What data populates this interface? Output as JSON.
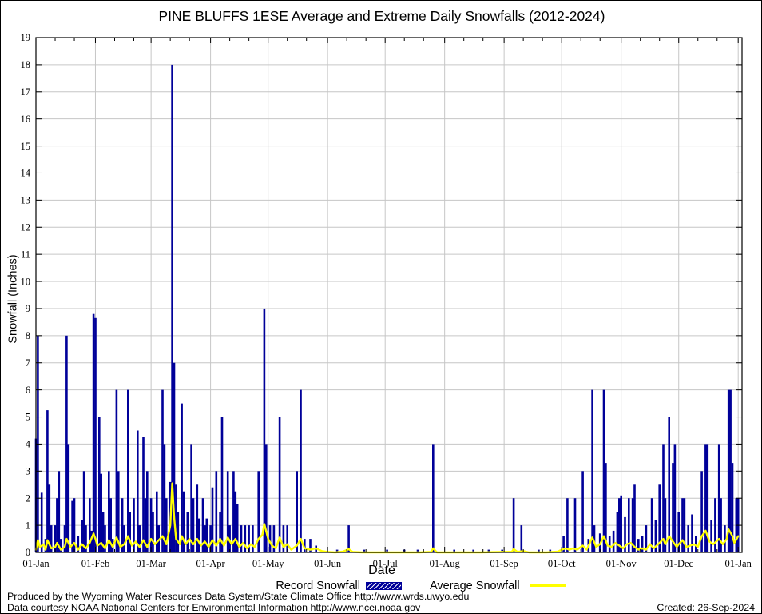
{
  "title": "PINE BLUFFS 1ESE Average and Extreme Daily Snowfalls (2012-2024)",
  "y_axis_label": "Snowfall (Inches)",
  "x_axis_label": "Date",
  "legend": {
    "record_label": "Record Snowfall",
    "average_label": "Average Snowfall"
  },
  "footer": {
    "line1": "Produced by the Wyoming Water Resources Data System/State Climate Office http://www.wrds.uwyo.edu",
    "line2": "Data courtesy NOAA National Centers for Environmental Information http://www.ncei.noaa.gov",
    "created": "Created: 26-Sep-2024"
  },
  "colors": {
    "record_bar": "#000099",
    "average_line": "#ffff00",
    "grid": "#c6c6c6",
    "axis": "#000000",
    "background": "#ffffff"
  },
  "chart_data": {
    "type": "bar",
    "title": "PINE BLUFFS 1ESE Average and Extreme Daily Snowfalls (2012-2024)",
    "xlabel": "Date",
    "ylabel": "Snowfall (Inches)",
    "ylim": [
      0,
      19
    ],
    "y_tick_step": 1,
    "grid": true,
    "legend_position": "below",
    "x_range_days": [
      0,
      368
    ],
    "x_tick_labels": [
      "01-Jan",
      "01-Feb",
      "01-Mar",
      "01-Apr",
      "01-May",
      "01-Jun",
      "01-Jul",
      "01-Aug",
      "01-Sep",
      "01-Oct",
      "01-Nov",
      "01-Dec",
      "01-Jan"
    ],
    "month_start_days": [
      0,
      31,
      60,
      91,
      121,
      152,
      182,
      213,
      244,
      274,
      305,
      335,
      366
    ],
    "series": [
      {
        "name": "Record Snowfall",
        "render": "bar",
        "color": "#000099",
        "units": "inches",
        "points": [
          [
            0,
            4.2
          ],
          [
            1,
            8
          ],
          [
            3,
            2.2
          ],
          [
            5,
            0.5
          ],
          [
            6,
            5.25
          ],
          [
            7,
            2.5
          ],
          [
            8,
            1
          ],
          [
            10,
            1
          ],
          [
            11,
            2
          ],
          [
            12,
            3
          ],
          [
            13,
            0.5
          ],
          [
            15,
            1
          ],
          [
            16,
            8
          ],
          [
            17,
            4
          ],
          [
            19,
            1.9
          ],
          [
            20,
            2
          ],
          [
            22,
            0.6
          ],
          [
            24,
            1.2
          ],
          [
            25,
            3
          ],
          [
            26,
            1
          ],
          [
            28,
            2
          ],
          [
            29,
            0.8
          ],
          [
            30,
            8.8
          ],
          [
            31,
            8.65
          ],
          [
            33,
            5
          ],
          [
            34,
            2.9
          ],
          [
            35,
            1.5
          ],
          [
            36,
            1
          ],
          [
            38,
            3
          ],
          [
            39,
            2
          ],
          [
            40,
            0.5
          ],
          [
            42,
            6
          ],
          [
            43,
            3
          ],
          [
            45,
            2
          ],
          [
            46,
            1
          ],
          [
            48,
            6
          ],
          [
            49,
            1.5
          ],
          [
            51,
            2
          ],
          [
            53,
            4.5
          ],
          [
            54,
            1
          ],
          [
            56,
            4.25
          ],
          [
            57,
            2
          ],
          [
            58,
            3
          ],
          [
            60,
            2
          ],
          [
            61,
            1.5
          ],
          [
            63,
            2.25
          ],
          [
            64,
            1
          ],
          [
            66,
            6
          ],
          [
            67,
            4
          ],
          [
            68,
            2
          ],
          [
            70,
            2.6
          ],
          [
            71,
            18
          ],
          [
            72,
            7
          ],
          [
            73,
            2.5
          ],
          [
            74,
            1.5
          ],
          [
            76,
            5.5
          ],
          [
            77,
            2.25
          ],
          [
            79,
            1.5
          ],
          [
            81,
            4
          ],
          [
            82,
            2
          ],
          [
            84,
            2.5
          ],
          [
            85,
            1.25
          ],
          [
            87,
            2
          ],
          [
            88,
            1
          ],
          [
            89,
            1.25
          ],
          [
            91,
            1
          ],
          [
            92,
            2.4
          ],
          [
            94,
            3
          ],
          [
            96,
            1.5
          ],
          [
            97,
            5
          ],
          [
            100,
            3
          ],
          [
            101,
            1
          ],
          [
            103,
            3
          ],
          [
            104,
            2.25
          ],
          [
            105,
            1.8
          ],
          [
            107,
            1
          ],
          [
            109,
            1
          ],
          [
            111,
            1
          ],
          [
            113,
            1
          ],
          [
            116,
            3
          ],
          [
            119,
            9
          ],
          [
            120,
            4
          ],
          [
            122,
            1
          ],
          [
            124,
            1
          ],
          [
            127,
            5
          ],
          [
            129,
            1
          ],
          [
            131,
            1
          ],
          [
            136,
            3
          ],
          [
            138,
            6
          ],
          [
            140,
            0.5
          ],
          [
            143,
            0.5
          ],
          [
            146,
            0.25
          ],
          [
            157,
            0.1
          ],
          [
            163,
            1
          ],
          [
            171,
            0.1
          ],
          [
            183,
            0.1
          ],
          [
            192,
            0.1
          ],
          [
            199,
            0.1
          ],
          [
            207,
            4
          ],
          [
            218,
            0.1
          ],
          [
            228,
            0.1
          ],
          [
            236,
            0.1
          ],
          [
            243,
            0.1
          ],
          [
            249,
            2
          ],
          [
            253,
            1
          ],
          [
            262,
            0.1
          ],
          [
            268,
            0.1
          ],
          [
            275,
            0.6
          ],
          [
            277,
            2
          ],
          [
            281,
            2
          ],
          [
            285,
            3
          ],
          [
            288,
            0.5
          ],
          [
            290,
            6
          ],
          [
            291,
            1
          ],
          [
            294,
            0.7
          ],
          [
            296,
            6
          ],
          [
            297,
            3.3
          ],
          [
            299,
            0.6
          ],
          [
            301,
            0.8
          ],
          [
            303,
            1.5
          ],
          [
            304,
            2
          ],
          [
            305,
            2.1
          ],
          [
            307,
            1.3
          ],
          [
            309,
            2
          ],
          [
            311,
            2
          ],
          [
            312,
            2.5
          ],
          [
            314,
            0.5
          ],
          [
            316,
            0.6
          ],
          [
            318,
            1
          ],
          [
            321,
            2
          ],
          [
            323,
            1.2
          ],
          [
            325,
            2.5
          ],
          [
            327,
            4
          ],
          [
            328,
            2
          ],
          [
            330,
            5
          ],
          [
            332,
            3.3
          ],
          [
            333,
            4
          ],
          [
            335,
            1.5
          ],
          [
            337,
            2
          ],
          [
            338,
            2
          ],
          [
            340,
            1
          ],
          [
            342,
            1.4
          ],
          [
            344,
            0.6
          ],
          [
            347,
            3
          ],
          [
            349,
            4
          ],
          [
            350,
            4
          ],
          [
            352,
            1.2
          ],
          [
            354,
            2
          ],
          [
            356,
            4
          ],
          [
            357,
            2
          ],
          [
            359,
            1
          ],
          [
            361,
            6
          ],
          [
            362,
            6
          ],
          [
            363,
            3.3
          ],
          [
            365,
            2
          ],
          [
            366,
            2
          ]
        ]
      },
      {
        "name": "Average Snowfall",
        "render": "line",
        "color": "#ffff00",
        "units": "inches",
        "points": [
          [
            0,
            0.1
          ],
          [
            1,
            0.45
          ],
          [
            2,
            0.2
          ],
          [
            4,
            0.3
          ],
          [
            5,
            0.1
          ],
          [
            6,
            0.45
          ],
          [
            8,
            0.15
          ],
          [
            10,
            0.2
          ],
          [
            11,
            0.35
          ],
          [
            13,
            0.1
          ],
          [
            15,
            0.2
          ],
          [
            16,
            0.5
          ],
          [
            18,
            0.2
          ],
          [
            20,
            0.35
          ],
          [
            22,
            0.1
          ],
          [
            24,
            0.3
          ],
          [
            26,
            0.15
          ],
          [
            28,
            0.35
          ],
          [
            30,
            0.7
          ],
          [
            31,
            0.5
          ],
          [
            32,
            0.25
          ],
          [
            34,
            0.35
          ],
          [
            36,
            0.15
          ],
          [
            38,
            0.45
          ],
          [
            40,
            0.2
          ],
          [
            42,
            0.55
          ],
          [
            44,
            0.2
          ],
          [
            46,
            0.3
          ],
          [
            48,
            0.6
          ],
          [
            50,
            0.25
          ],
          [
            52,
            0.4
          ],
          [
            54,
            0.2
          ],
          [
            56,
            0.45
          ],
          [
            58,
            0.2
          ],
          [
            60,
            0.5
          ],
          [
            62,
            0.3
          ],
          [
            64,
            0.45
          ],
          [
            66,
            0.6
          ],
          [
            68,
            0.3
          ],
          [
            70,
            1.0
          ],
          [
            71,
            2.55
          ],
          [
            72,
            1.3
          ],
          [
            73,
            0.5
          ],
          [
            75,
            0.3
          ],
          [
            76,
            0.6
          ],
          [
            78,
            0.3
          ],
          [
            80,
            0.5
          ],
          [
            82,
            0.3
          ],
          [
            84,
            0.5
          ],
          [
            86,
            0.25
          ],
          [
            88,
            0.4
          ],
          [
            90,
            0.2
          ],
          [
            92,
            0.45
          ],
          [
            94,
            0.25
          ],
          [
            96,
            0.5
          ],
          [
            98,
            0.25
          ],
          [
            100,
            0.55
          ],
          [
            102,
            0.3
          ],
          [
            104,
            0.5
          ],
          [
            106,
            0.2
          ],
          [
            108,
            0.35
          ],
          [
            110,
            0.15
          ],
          [
            112,
            0.3
          ],
          [
            114,
            0.2
          ],
          [
            116,
            0.5
          ],
          [
            118,
            0.65
          ],
          [
            119,
            1.05
          ],
          [
            121,
            0.5
          ],
          [
            123,
            0.25
          ],
          [
            125,
            0.15
          ],
          [
            127,
            0.55
          ],
          [
            129,
            0.2
          ],
          [
            131,
            0.3
          ],
          [
            133,
            0.1
          ],
          [
            136,
            0.25
          ],
          [
            138,
            0.5
          ],
          [
            140,
            0.15
          ],
          [
            143,
            0.1
          ],
          [
            146,
            0.15
          ],
          [
            149,
            0.05
          ],
          [
            152,
            0.02
          ],
          [
            156,
            0
          ],
          [
            160,
            0.03
          ],
          [
            163,
            0.12
          ],
          [
            165,
            0.02
          ],
          [
            170,
            0
          ],
          [
            180,
            0
          ],
          [
            190,
            0
          ],
          [
            200,
            0
          ],
          [
            206,
            0.02
          ],
          [
            207,
            0.15
          ],
          [
            209,
            0
          ],
          [
            220,
            0
          ],
          [
            232,
            0
          ],
          [
            244,
            0.02
          ],
          [
            248,
            0.02
          ],
          [
            249,
            0.12
          ],
          [
            251,
            0.02
          ],
          [
            254,
            0.05
          ],
          [
            257,
            0
          ],
          [
            266,
            0
          ],
          [
            272,
            0.03
          ],
          [
            274,
            0.1
          ],
          [
            276,
            0.15
          ],
          [
            278,
            0.1
          ],
          [
            280,
            0.15
          ],
          [
            282,
            0.1
          ],
          [
            285,
            0.25
          ],
          [
            287,
            0.1
          ],
          [
            290,
            0.55
          ],
          [
            292,
            0.2
          ],
          [
            294,
            0.3
          ],
          [
            296,
            0.6
          ],
          [
            298,
            0.25
          ],
          [
            300,
            0.2
          ],
          [
            302,
            0.35
          ],
          [
            304,
            0.25
          ],
          [
            306,
            0.15
          ],
          [
            308,
            0.3
          ],
          [
            310,
            0.35
          ],
          [
            312,
            0.2
          ],
          [
            314,
            0.1
          ],
          [
            316,
            0.15
          ],
          [
            318,
            0.1
          ],
          [
            320,
            0.3
          ],
          [
            322,
            0.15
          ],
          [
            325,
            0.35
          ],
          [
            327,
            0.5
          ],
          [
            328,
            0.3
          ],
          [
            330,
            0.6
          ],
          [
            332,
            0.4
          ],
          [
            334,
            0.2
          ],
          [
            335,
            0.3
          ],
          [
            337,
            0.45
          ],
          [
            339,
            0.2
          ],
          [
            341,
            0.25
          ],
          [
            343,
            0.3
          ],
          [
            345,
            0.2
          ],
          [
            347,
            0.6
          ],
          [
            349,
            0.8
          ],
          [
            351,
            0.4
          ],
          [
            353,
            0.3
          ],
          [
            356,
            0.5
          ],
          [
            358,
            0.3
          ],
          [
            360,
            0.5
          ],
          [
            361,
            0.85
          ],
          [
            363,
            0.6
          ],
          [
            364,
            0.35
          ],
          [
            366,
            0.6
          ]
        ]
      }
    ]
  }
}
